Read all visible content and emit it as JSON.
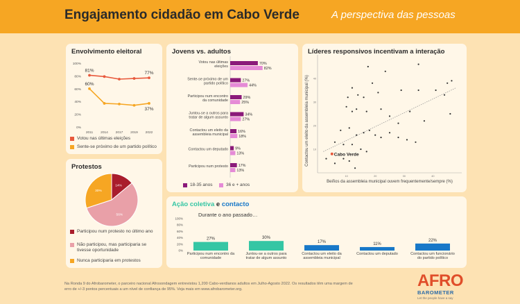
{
  "header": {
    "title": "Engajamento cidadão em Cabo Verde",
    "subtitle": "A perspectiva das pessoas"
  },
  "colors": {
    "orange": "#f6a623",
    "red": "#e8593c",
    "dark_purple": "#8b1a7a",
    "light_purple": "#e58ad6",
    "teal": "#35c6a4",
    "blue": "#1878c8",
    "pink": "#e9a0a8",
    "dark_red": "#a91d2c"
  },
  "electoral": {
    "title": "Envolvimento eleitoral",
    "legend": [
      "Votou nas últimas eleições",
      "Sente-se próximo de um partido político"
    ]
  },
  "youth": {
    "title": "Jovens vs. adultos",
    "legend": [
      "18-35 anos",
      "36 e + anos"
    ]
  },
  "leaders": {
    "title": "Líderes responsivos incentivam a interação",
    "xlabel": "Beiños da assembleia municipal ouvem frequentemente/sempre (%)",
    "ylabel": "Contactou um eleito da assembleia municipal (%)",
    "highlight": "Cabo Verde"
  },
  "protests": {
    "title": "Protestos",
    "legend": [
      "Participou num protesto no último ano",
      "Não participou, mas participaria se tivesse oportunidade",
      "Nunca participaria em protestos"
    ]
  },
  "collective": {
    "title_part1": "Ação coletiva",
    "title_and": " e ",
    "title_part2": "contacto",
    "subtitle": "Durante o ano passado…"
  },
  "footer": {
    "text": "Na Ronda 9 do Afrobarometer, o parceiro nacional Afrosondagem entrevistou 1,200 Cabo-verdianos adultos em Julho-Agosto 2022. Os resultados têm uma margem de erro de +/-3 pontos percentuais a um nível de confiança de 95%. Veja mais em www.afrobarometer.org."
  },
  "logo": {
    "main": "AFRO",
    "sub": "BAROMETER",
    "tag": "Let the people have a say"
  },
  "chart_data": [
    {
      "type": "line",
      "title": "Envolvimento eleitoral",
      "x": [
        2011,
        2014,
        2017,
        2019,
        2022
      ],
      "ylim": [
        0,
        100
      ],
      "yticks": [
        "0%",
        "20%",
        "40%",
        "60%",
        "80%",
        "100%"
      ],
      "series": [
        {
          "name": "Votou nas últimas eleições",
          "values": [
            81,
            79,
            75,
            76,
            77
          ],
          "labels": [
            "81%",
            "",
            "",
            "",
            "77%"
          ]
        },
        {
          "name": "Sente-se próximo de um partido político",
          "values": [
            60,
            37,
            36,
            34,
            37
          ],
          "labels": [
            "60%",
            "",
            "",
            "",
            "37%"
          ]
        }
      ]
    },
    {
      "type": "bar",
      "title": "Jovens vs. adultos",
      "categories": [
        "Votou nas últimas eleições",
        "Sente-se próximo de um partido político",
        "Participou num encontro da comunidade",
        "Juntou-se a outros para tratar de algum assunto",
        "Contactou um eleito da assembleia municipal",
        "Contactou um deputado",
        "Participou num protesto"
      ],
      "series": [
        {
          "name": "18-35 anos",
          "values": [
            70,
            27,
            29,
            34,
            16,
            9,
            17
          ]
        },
        {
          "name": "36 e + anos",
          "values": [
            82,
            44,
            25,
            27,
            18,
            13,
            13
          ]
        }
      ]
    },
    {
      "type": "scatter",
      "title": "Líderes responsivos incentivam a interação",
      "xlabel": "Beiños da assembleia municipal ouvem frequentemente/sempre (%)",
      "ylabel": "Contactou um eleito da assembleia municipal (%)",
      "xlim": [
        0,
        50
      ],
      "ylim": [
        0,
        50
      ],
      "xticks": [
        10,
        20,
        30,
        40
      ],
      "yticks": [
        10,
        20,
        30,
        40
      ],
      "trendline": true,
      "points": [
        [
          17.5,
          45
        ],
        [
          23.5,
          43
        ],
        [
          35,
          46
        ],
        [
          46.5,
          39
        ],
        [
          45,
          38
        ],
        [
          12,
          36
        ],
        [
          19,
          38
        ],
        [
          10.5,
          32
        ],
        [
          14,
          33
        ],
        [
          16,
          32
        ],
        [
          21,
          34
        ],
        [
          29,
          35
        ],
        [
          35,
          35
        ],
        [
          41,
          35
        ],
        [
          44,
          33
        ],
        [
          10,
          28
        ],
        [
          12,
          26
        ],
        [
          13.5,
          27
        ],
        [
          17,
          26
        ],
        [
          22,
          27
        ],
        [
          25,
          24
        ],
        [
          28,
          21
        ],
        [
          32,
          26
        ],
        [
          37,
          22
        ],
        [
          46,
          25
        ],
        [
          8,
          18
        ],
        [
          11,
          19
        ],
        [
          13.5,
          16
        ],
        [
          16,
          17
        ],
        [
          18,
          18
        ],
        [
          20,
          16
        ],
        [
          22,
          15
        ],
        [
          25,
          17
        ],
        [
          28,
          15
        ],
        [
          31,
          14
        ],
        [
          34,
          13
        ],
        [
          6,
          13
        ],
        [
          9,
          12
        ],
        [
          12,
          12
        ],
        [
          15,
          10
        ],
        [
          17,
          9
        ],
        [
          3,
          6
        ],
        [
          6,
          4
        ],
        [
          9,
          6
        ],
        [
          11,
          5
        ],
        [
          13,
          2
        ]
      ],
      "highlight": {
        "name": "Cabo Verde",
        "x": 5,
        "y": 8
      }
    },
    {
      "type": "pie",
      "title": "Protestos",
      "slices": [
        {
          "name": "Participou num protesto no último ano",
          "value": 14,
          "label": "14%"
        },
        {
          "name": "Não participou, mas participaria se tivesse oportunidade",
          "value": 56,
          "label": "56%"
        },
        {
          "name": "Nunca participaria em protestos",
          "value": 30,
          "label": "30%"
        }
      ]
    },
    {
      "type": "bar",
      "title": "Ação coletiva e contacto",
      "subtitle": "Durante o ano passado…",
      "categories": [
        "Participou num encontro da comunidade",
        "Juntou-se a outros para tratar de algum assunto",
        "Contactou um eleito da assembleia municipal",
        "Contactou um deputado",
        "Contactou um funcionário do partido político"
      ],
      "values": [
        27,
        30,
        17,
        11,
        22
      ],
      "ylim": [
        0,
        100
      ],
      "yticks": [
        "0%",
        "20%",
        "40%",
        "60%",
        "80%",
        "100%"
      ]
    }
  ]
}
